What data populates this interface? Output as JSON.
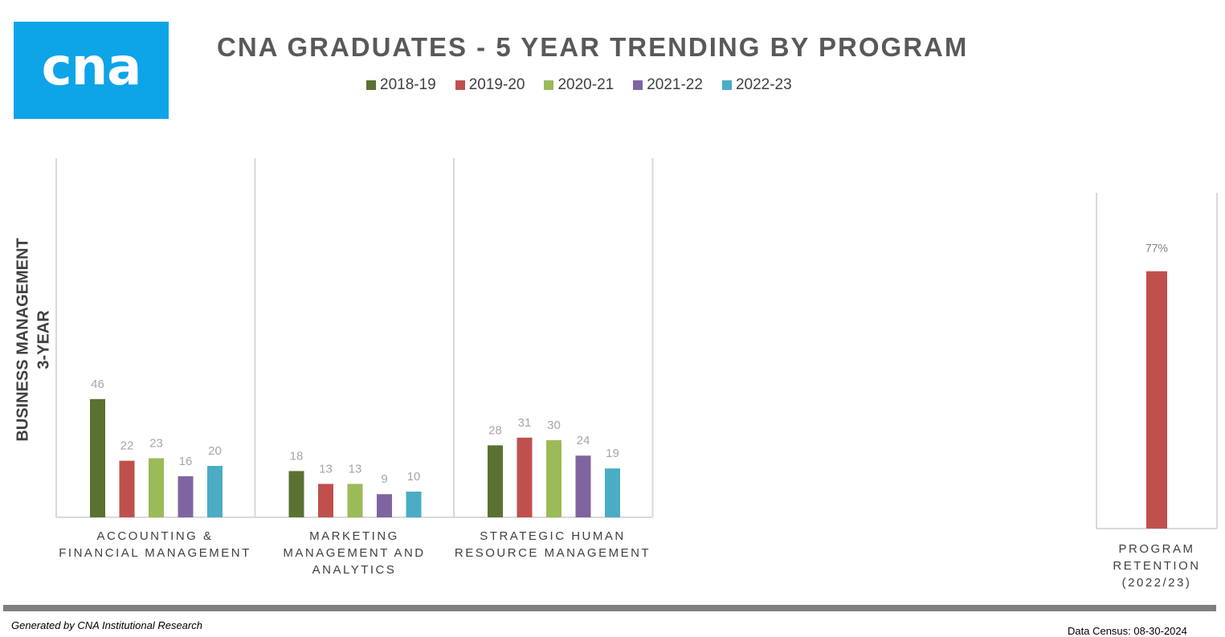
{
  "logo": {
    "text": "cna",
    "color": "#0ea4e8"
  },
  "title": "CNA GRADUATES - 5 YEAR TRENDING BY PROGRAM",
  "y_axis_label": {
    "line1": "BUSINESS MANAGEMENT",
    "line2": "3-YEAR"
  },
  "chart_data": [
    {
      "type": "bar",
      "title": "CNA GRADUATES - 5 YEAR TRENDING BY PROGRAM",
      "categories": [
        "ACCOUNTING & FINANCIAL MANAGEMENT",
        "MARKETING MANAGEMENT AND ANALYTICS",
        "STRATEGIC HUMAN RESOURCE MANAGEMENT"
      ],
      "series": [
        {
          "name": "2018-19",
          "color": "#5b7132",
          "values": [
            46,
            18,
            28
          ]
        },
        {
          "name": "2019-20",
          "color": "#c0504d",
          "values": [
            22,
            13,
            31
          ]
        },
        {
          "name": "2020-21",
          "color": "#9bbb59",
          "values": [
            23,
            13,
            30
          ]
        },
        {
          "name": "2021-22",
          "color": "#8064a2",
          "values": [
            16,
            9,
            24
          ]
        },
        {
          "name": "2022-23",
          "color": "#4bacc6",
          "values": [
            20,
            10,
            19
          ]
        }
      ],
      "ylim": [
        0,
        100
      ],
      "ylabel": "BUSINESS MANAGEMENT 3-YEAR",
      "legend": "top",
      "grid": false
    },
    {
      "type": "bar",
      "categories": [
        "PROGRAM RETENTION (2022/23)"
      ],
      "values": [
        77
      ],
      "value_labels": [
        "77%"
      ],
      "color": "#c0504d",
      "ylim": [
        0,
        100
      ],
      "grid": false
    }
  ],
  "category_labels": [
    {
      "line1": "ACCOUNTING &",
      "line2": "FINANCIAL MANAGEMENT",
      "line3": ""
    },
    {
      "line1": "MARKETING",
      "line2": "MANAGEMENT AND",
      "line3": "ANALYTICS"
    },
    {
      "line1": "STRATEGIC HUMAN",
      "line2": "RESOURCE MANAGEMENT",
      "line3": ""
    }
  ],
  "retention_label": {
    "line1": "PROGRAM",
    "line2": "RETENTION",
    "line3": "(2022/23)"
  },
  "footer": {
    "generated_by": "Generated by CNA Institutional Research",
    "data_census": "Data Census: 08-30-2024"
  }
}
